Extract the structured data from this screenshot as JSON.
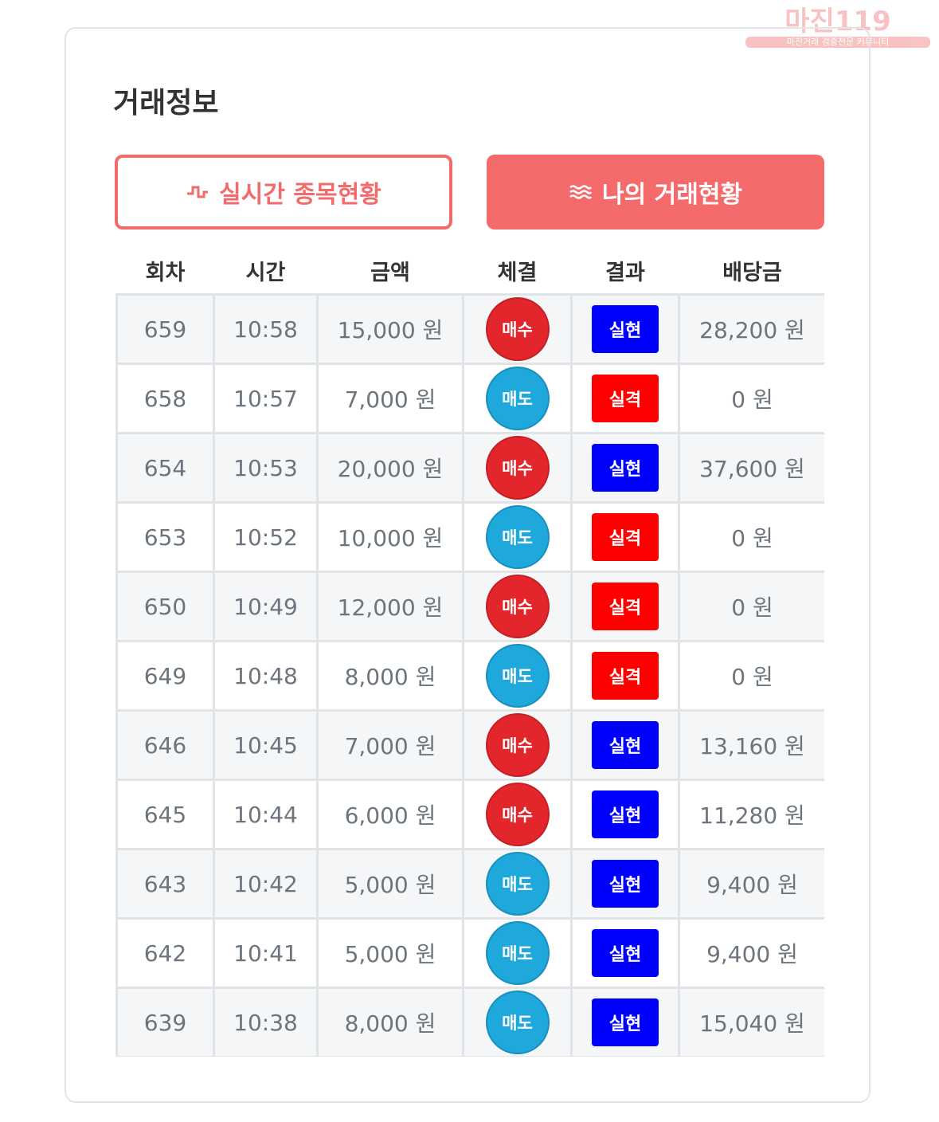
{
  "watermark": {
    "logo": "마진119",
    "tagline": "마진거래 검증전문 커뮤니티"
  },
  "header": {
    "title": "거래정보"
  },
  "tabs": [
    "실시간 종목현황",
    "나의 거래현황"
  ],
  "table": {
    "columns": [
      "회차",
      "시간",
      "금액",
      "체결",
      "결과",
      "배당금"
    ],
    "colors": {
      "매수": "#e3262b",
      "매도": "#1ea8dc",
      "실현": "#0000ff",
      "실격": "#ff0000"
    },
    "rows": [
      [
        "659",
        "10:58",
        "15,000 원",
        "매수",
        "실현",
        "28,200 원"
      ],
      [
        "658",
        "10:57",
        "7,000 원",
        "매도",
        "실격",
        "0 원"
      ],
      [
        "654",
        "10:53",
        "20,000 원",
        "매수",
        "실현",
        "37,600 원"
      ],
      [
        "653",
        "10:52",
        "10,000 원",
        "매도",
        "실격",
        "0 원"
      ],
      [
        "650",
        "10:49",
        "12,000 원",
        "매수",
        "실격",
        "0 원"
      ],
      [
        "649",
        "10:48",
        "8,000 원",
        "매도",
        "실격",
        "0 원"
      ],
      [
        "646",
        "10:45",
        "7,000 원",
        "매수",
        "실현",
        "13,160 원"
      ],
      [
        "645",
        "10:44",
        "6,000 원",
        "매수",
        "실현",
        "11,280 원"
      ],
      [
        "643",
        "10:42",
        "5,000 원",
        "매도",
        "실현",
        "9,400 원"
      ],
      [
        "642",
        "10:41",
        "5,000 원",
        "매도",
        "실현",
        "9,400 원"
      ],
      [
        "639",
        "10:38",
        "8,000 원",
        "매도",
        "실현",
        "15,040 원"
      ]
    ]
  }
}
